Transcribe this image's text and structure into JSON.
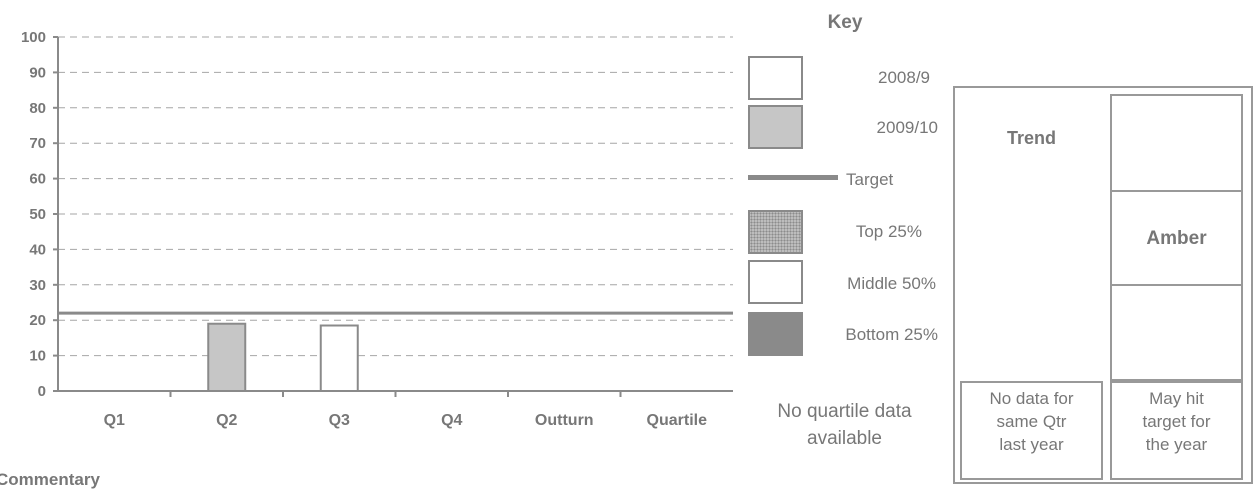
{
  "chart_data": {
    "type": "bar",
    "categories": [
      "Q1",
      "Q2",
      "Q3",
      "Q4",
      "Outturn",
      "Quartile"
    ],
    "series": [
      {
        "name": "2008/9",
        "values": [
          null,
          null,
          18.5,
          null,
          null,
          null
        ],
        "color": "#ffffff"
      },
      {
        "name": "2009/10",
        "values": [
          null,
          19,
          null,
          null,
          null,
          null
        ],
        "color": "#c6c6c6"
      }
    ],
    "target": 22,
    "ylim": [
      0,
      100
    ],
    "yticks": [
      "0",
      "10",
      "20",
      "30",
      "40",
      "50",
      "60",
      "70",
      "80",
      "90",
      "100"
    ],
    "grid": true,
    "gridlines": "dashed",
    "xlabel": "",
    "ylabel": ""
  },
  "key": {
    "title": "Key",
    "items": [
      {
        "label": "2008/9"
      },
      {
        "label": "2009/10"
      },
      {
        "label": "Target"
      },
      {
        "label": "Top 25%"
      },
      {
        "label": "Middle 50%"
      },
      {
        "label": "Bottom 25%"
      }
    ],
    "no_quartile_line1": "No quartile data",
    "no_quartile_line2": "available"
  },
  "panel": {
    "trend_title": "Trend",
    "status_label": "Amber",
    "trend_text": [
      "No data for",
      "same Qtr",
      "last year"
    ],
    "hit_text": [
      "May hit",
      "target for",
      "the year"
    ]
  },
  "commentary_label": "Commentary",
  "colors": {
    "axis": "#8a8a8a",
    "text": "#777777",
    "grid": "#a6a6a6",
    "bar_2009": "#c6c6c6",
    "target": "#8a8a8a"
  }
}
